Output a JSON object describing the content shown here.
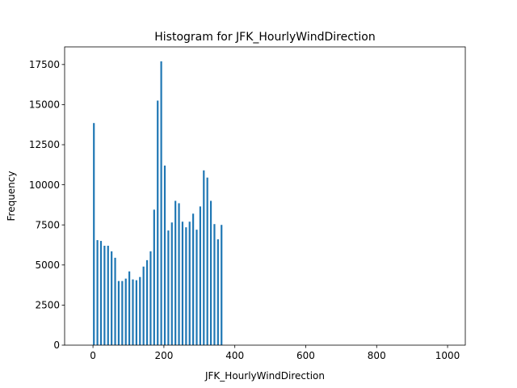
{
  "chart_data": {
    "type": "bar",
    "title": "Histogram for JFK_HourlyWindDirection",
    "xlabel": "JFK_HourlyWindDirection",
    "ylabel": "Frequency",
    "xlim": [
      -80,
      1050
    ],
    "ylim": [
      0,
      18600
    ],
    "xticks": [
      0,
      200,
      400,
      600,
      800,
      1000
    ],
    "yticks": [
      0,
      2500,
      5000,
      7500,
      10000,
      12500,
      15000,
      17500
    ],
    "grid": false,
    "bar_color": "#1f77b4",
    "bar_width": 5,
    "bars": [
      {
        "x": 0,
        "value": 13850
      },
      {
        "x": 10,
        "value": 6550
      },
      {
        "x": 20,
        "value": 6500
      },
      {
        "x": 30,
        "value": 6200
      },
      {
        "x": 40,
        "value": 6200
      },
      {
        "x": 50,
        "value": 5850
      },
      {
        "x": 60,
        "value": 5450
      },
      {
        "x": 70,
        "value": 4000
      },
      {
        "x": 80,
        "value": 4000
      },
      {
        "x": 90,
        "value": 4150
      },
      {
        "x": 100,
        "value": 4600
      },
      {
        "x": 110,
        "value": 4100
      },
      {
        "x": 120,
        "value": 4050
      },
      {
        "x": 130,
        "value": 4250
      },
      {
        "x": 140,
        "value": 4900
      },
      {
        "x": 150,
        "value": 5300
      },
      {
        "x": 160,
        "value": 5850
      },
      {
        "x": 170,
        "value": 8450
      },
      {
        "x": 180,
        "value": 15250
      },
      {
        "x": 190,
        "value": 17700
      },
      {
        "x": 200,
        "value": 11200
      },
      {
        "x": 210,
        "value": 7150
      },
      {
        "x": 220,
        "value": 7650
      },
      {
        "x": 230,
        "value": 9000
      },
      {
        "x": 240,
        "value": 8850
      },
      {
        "x": 250,
        "value": 7700
      },
      {
        "x": 260,
        "value": 7350
      },
      {
        "x": 270,
        "value": 7700
      },
      {
        "x": 280,
        "value": 8200
      },
      {
        "x": 290,
        "value": 7200
      },
      {
        "x": 300,
        "value": 8650
      },
      {
        "x": 310,
        "value": 10900
      },
      {
        "x": 320,
        "value": 10450
      },
      {
        "x": 330,
        "value": 9000
      },
      {
        "x": 340,
        "value": 7550
      },
      {
        "x": 350,
        "value": 6600
      },
      {
        "x": 360,
        "value": 7500
      }
    ]
  }
}
